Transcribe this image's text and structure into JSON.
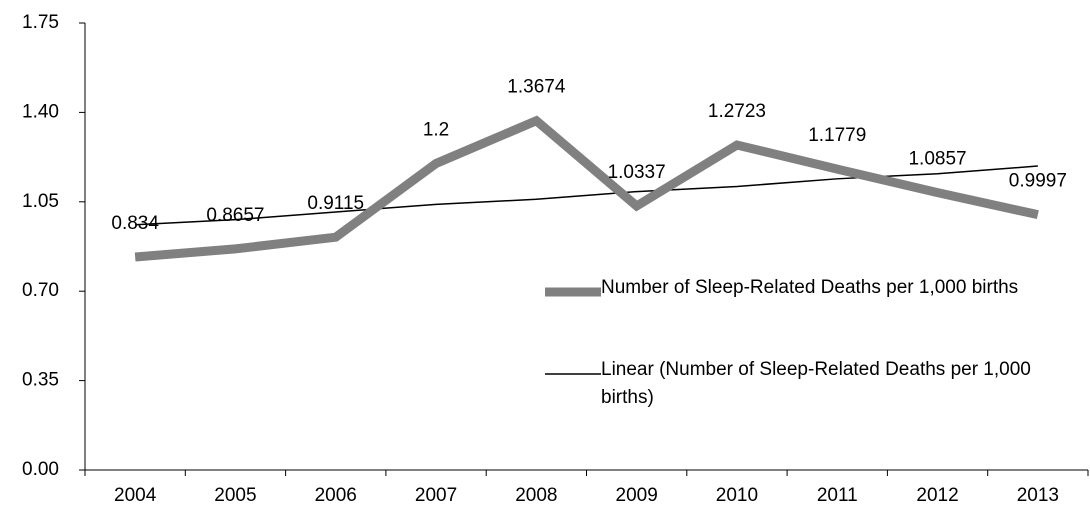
{
  "chart_data": {
    "type": "line",
    "categories": [
      "2004",
      "2005",
      "2006",
      "2007",
      "2008",
      "2009",
      "2010",
      "2011",
      "2012",
      "2013"
    ],
    "series": [
      {
        "name": "Number of Sleep-Related Deaths per 1,000 births",
        "color": "#808080",
        "values": [
          0.834,
          0.8657,
          0.9115,
          1.2,
          1.3674,
          1.0337,
          1.2723,
          1.1779,
          1.0857,
          0.9997
        ]
      },
      {
        "name": "Linear (Number of Sleep-Related Deaths per 1,000 births)",
        "color": "#000000",
        "values": [
          0.96,
          0.98,
          1.01,
          1.04,
          1.06,
          1.09,
          1.11,
          1.14,
          1.16,
          1.19
        ]
      }
    ],
    "ylim": [
      0,
      1.75
    ],
    "yticks": [
      {
        "value": 0,
        "label": "0.00"
      },
      {
        "value": 0.35,
        "label": "0.35"
      },
      {
        "value": 0.7,
        "label": "0.70"
      },
      {
        "value": 1.05,
        "label": "1.05"
      },
      {
        "value": 1.4,
        "label": "1.40"
      },
      {
        "value": 1.75,
        "label": "1.75"
      }
    ],
    "grid": false
  }
}
